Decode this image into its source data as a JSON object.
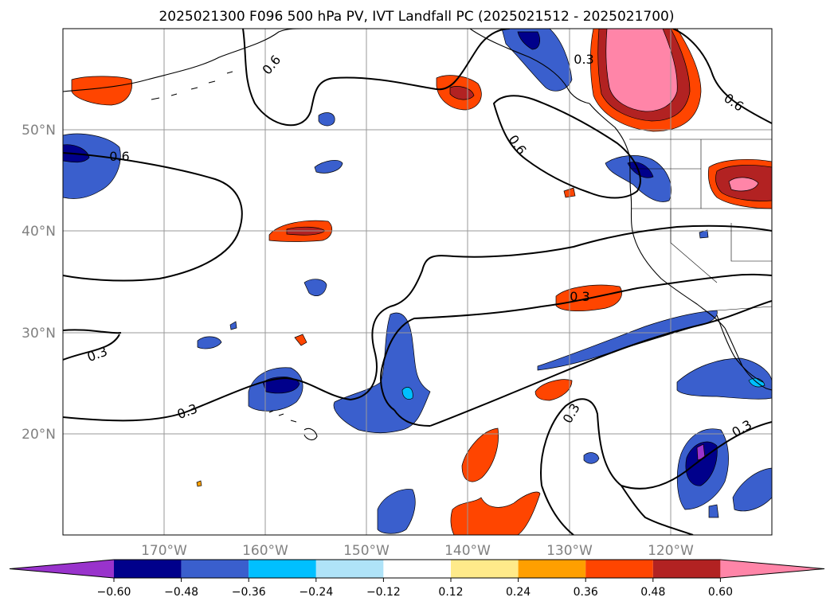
{
  "title": "2025021300 F096 500 hPa PV, IVT Landfall PC (2025021512 - 2025021700)",
  "map": {
    "lat_labels": [
      "50°N",
      "40°N",
      "30°N",
      "20°N"
    ],
    "lon_labels": [
      "170°W",
      "160°W",
      "150°W",
      "140°W",
      "130°W",
      "120°W"
    ],
    "contour_labels": [
      "0.6",
      "0.6",
      "0.6",
      "0.6",
      "0.3",
      "0.3",
      "0.3",
      "0.3",
      "0.3",
      "0.3"
    ]
  },
  "colorbar": {
    "colors": [
      "#9933cc",
      "#00008b",
      "#3a5fcd",
      "#00bfff",
      "#afe3f8",
      "#ffffff",
      "#ffea8a",
      "#ff9f00",
      "#ff4500",
      "#b22222",
      "#ff85a8"
    ],
    "ticks": [
      "−0.60",
      "−0.48",
      "−0.36",
      "−0.24",
      "−0.12",
      "0.12",
      "0.24",
      "0.36",
      "0.48",
      "0.60"
    ]
  }
}
